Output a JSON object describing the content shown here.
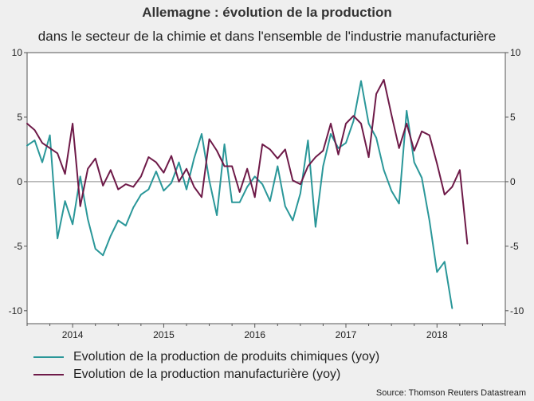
{
  "title": "Allemagne : évolution de la production",
  "subtitle": "dans le secteur de la chimie et dans l'ensemble de l'industrie manufacturière",
  "source": "Source: Thomson Reuters Datastream",
  "colors": {
    "chemicals": "#2a9799",
    "manufacturing": "#6e1a48",
    "grid": "#c8c8c8",
    "axis": "#555555"
  },
  "chart_data": {
    "type": "line",
    "title": "Allemagne : évolution de la production",
    "subtitle": "dans le secteur de la chimie et dans l'ensemble de l'industrie manufacturière",
    "ylim": [
      -11,
      10
    ],
    "xlim": [
      2013.5,
      2018.75
    ],
    "yticks": [
      -10,
      -5,
      0,
      5,
      10
    ],
    "ytick_labels": [
      "-10",
      "-5",
      "0",
      "5",
      "10"
    ],
    "xticks": [
      2014,
      2015,
      2016,
      2017,
      2018
    ],
    "xtick_labels": [
      "2014",
      "2015",
      "2016",
      "2017",
      "2018"
    ],
    "grid": false,
    "dual_y_axis": true,
    "legend_placement": "bottom",
    "series": [
      {
        "name": "Evolution de la production de produits chimiques (yoy)",
        "start": "2013-07",
        "values": [
          2.8,
          3.2,
          1.5,
          3.6,
          -4.4,
          -1.5,
          -3.3,
          0.4,
          -2.9,
          -5.2,
          -5.7,
          -4.2,
          -3.0,
          -3.4,
          -2.0,
          -1.0,
          -0.6,
          0.8,
          -0.7,
          -0.1,
          1.5,
          -0.6,
          1.8,
          3.7,
          0.1,
          -2.6,
          2.9,
          -1.6,
          -1.6,
          -0.4,
          0.4,
          -0.2,
          -1.5,
          1.2,
          -1.9,
          -3.0,
          -0.9,
          3.2,
          -3.5,
          1.2,
          3.7,
          2.6,
          3.0,
          4.7,
          7.8,
          4.5,
          3.4,
          0.9,
          -0.7,
          -1.7,
          5.5,
          1.5,
          0.3,
          -3.0,
          -7.0,
          -6.2,
          -9.8
        ]
      },
      {
        "name": "Evolution de la production manufacturière (yoy)",
        "start": "2013-07",
        "values": [
          4.5,
          4.0,
          3.0,
          2.6,
          2.2,
          0.6,
          4.5,
          -1.9,
          1.0,
          1.8,
          -0.3,
          0.9,
          -0.6,
          -0.2,
          -0.4,
          0.4,
          1.9,
          1.5,
          0.7,
          2.0,
          0.0,
          1.0,
          -0.4,
          -1.2,
          3.3,
          2.4,
          1.2,
          1.2,
          -0.8,
          1.0,
          -1.2,
          2.9,
          2.5,
          1.8,
          2.5,
          0.1,
          -0.2,
          1.2,
          1.9,
          2.4,
          4.5,
          2.1,
          4.5,
          5.1,
          4.5,
          1.9,
          6.8,
          7.9,
          5.2,
          2.6,
          4.5,
          2.4,
          3.9,
          3.6,
          1.4,
          -1.0,
          -0.4,
          0.9,
          -4.8
        ]
      }
    ]
  }
}
